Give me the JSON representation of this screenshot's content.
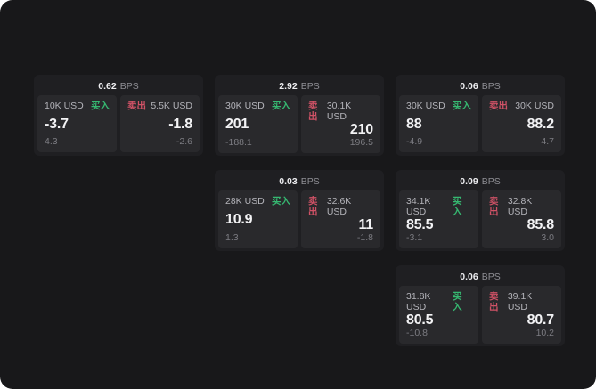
{
  "labels": {
    "bps_unit": "BPS",
    "buy": "买入",
    "sell": "卖出"
  },
  "colors": {
    "page_outside": "#ffffff",
    "background": "#18181a",
    "card": "#1f1f22",
    "panel": "#29292c",
    "buy_green": "#36b871",
    "sell_red": "#d05266",
    "primary_text": "#f3f3f5",
    "muted_text": "#7c7c82"
  },
  "cards": [
    {
      "col": 1,
      "row": 1,
      "bps": "0.62",
      "buy": {
        "amount": "10K USD",
        "price": "-3.7",
        "delta": "4.3"
      },
      "sell": {
        "amount": "5.5K USD",
        "price": "-1.8",
        "delta": "-2.6"
      }
    },
    {
      "col": 2,
      "row": 1,
      "bps": "2.92",
      "buy": {
        "amount": "30K USD",
        "price": "201",
        "delta": "-188.1"
      },
      "sell": {
        "amount": "30.1K USD",
        "price": "210",
        "delta": "196.5"
      }
    },
    {
      "col": 3,
      "row": 1,
      "bps": "0.06",
      "buy": {
        "amount": "30K USD",
        "price": "88",
        "delta": "-4.9"
      },
      "sell": {
        "amount": "30K USD",
        "price": "88.2",
        "delta": "4.7"
      }
    },
    {
      "col": 2,
      "row": 2,
      "bps": "0.03",
      "buy": {
        "amount": "28K USD",
        "price": "10.9",
        "delta": "1.3"
      },
      "sell": {
        "amount": "32.6K USD",
        "price": "11",
        "delta": "-1.8"
      }
    },
    {
      "col": 3,
      "row": 2,
      "bps": "0.09",
      "buy": {
        "amount": "34.1K USD",
        "price": "85.5",
        "delta": "-3.1"
      },
      "sell": {
        "amount": "32.8K USD",
        "price": "85.8",
        "delta": "3.0"
      }
    },
    {
      "col": 3,
      "row": 3,
      "bps": "0.06",
      "buy": {
        "amount": "31.8K USD",
        "price": "80.5",
        "delta": "-10.8"
      },
      "sell": {
        "amount": "39.1K USD",
        "price": "80.7",
        "delta": "10.2"
      }
    }
  ]
}
